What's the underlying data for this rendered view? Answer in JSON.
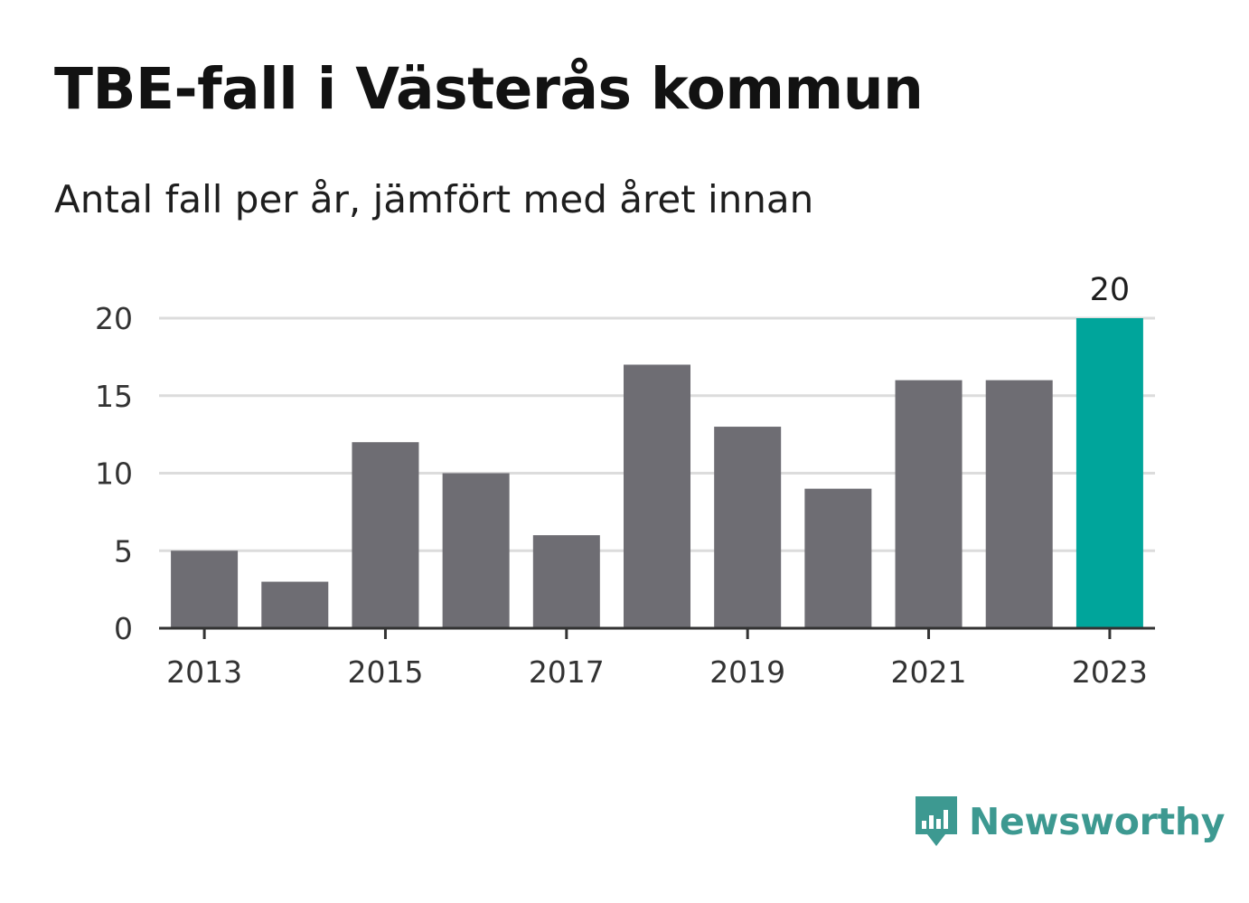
{
  "header": {
    "title": "TBE-fall i Västerås kommun",
    "subtitle": "Antal fall per år, jämfört med året innan"
  },
  "brand": {
    "name": "Newsworthy",
    "icon": "newsworthy-logo-icon",
    "color": "#3d9991"
  },
  "colors": {
    "bar": "#6e6d73",
    "highlight": "#00a59b",
    "grid": "#dcdcdc",
    "axis": "#333333"
  },
  "chart_data": {
    "type": "bar",
    "categories": [
      "2013",
      "2014",
      "2015",
      "2016",
      "2017",
      "2018",
      "2019",
      "2020",
      "2021",
      "2022",
      "2023"
    ],
    "values": [
      5,
      3,
      12,
      10,
      6,
      17,
      13,
      9,
      16,
      16,
      20
    ],
    "highlight_index": 10,
    "value_labels": [
      {
        "index": 10,
        "text": "20"
      }
    ],
    "x_tick_labels": [
      "2013",
      "2015",
      "2017",
      "2019",
      "2021",
      "2023"
    ],
    "y_ticks": [
      0,
      5,
      10,
      15,
      20
    ],
    "ylim": [
      0,
      20
    ],
    "grid": true,
    "title": "TBE-fall i Västerås kommun",
    "subtitle": "Antal fall per år, jämfört med året innan"
  }
}
